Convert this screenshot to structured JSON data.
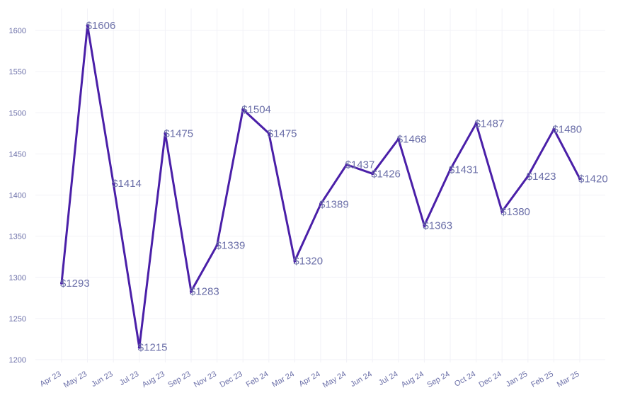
{
  "chart_data": {
    "type": "line",
    "title": "",
    "xlabel": "",
    "ylabel": "",
    "ylim": [
      1200,
      1620
    ],
    "yticks": [
      1200,
      1250,
      1300,
      1350,
      1400,
      1450,
      1500,
      1550,
      1600
    ],
    "grid": true,
    "line_color": "#4a1fa8",
    "label_color": "#6b6fa8",
    "label_prefix": "$",
    "categories": [
      "Apr 23",
      "May 23",
      "Jun 23",
      "Jul 23",
      "Aug 23",
      "Sep 23",
      "Nov 23",
      "Dec 23",
      "Feb 24",
      "Mar 24",
      "Apr 24",
      "May 24",
      "Jun 24",
      "Jul 24",
      "Aug 24",
      "Sep 24",
      "Oct 24",
      "Dec 24",
      "Jan 25",
      "Feb 25",
      "Mar 25"
    ],
    "values": [
      1293,
      1606,
      1414,
      1215,
      1475,
      1283,
      1339,
      1504,
      1475,
      1320,
      1389,
      1437,
      1426,
      1468,
      1363,
      1431,
      1487,
      1380,
      1423,
      1480,
      1420
    ],
    "data_labels": [
      "$1293",
      "$1606",
      "$1414",
      "$1215",
      "$1475",
      "$1283",
      "$1339",
      "$1504",
      "$1475",
      "$1320",
      "$1389",
      "$1437",
      "$1426",
      "$1468",
      "$1363",
      "$1431",
      "$1487",
      "$1380",
      "$1423",
      "$1480",
      "$1420"
    ]
  }
}
